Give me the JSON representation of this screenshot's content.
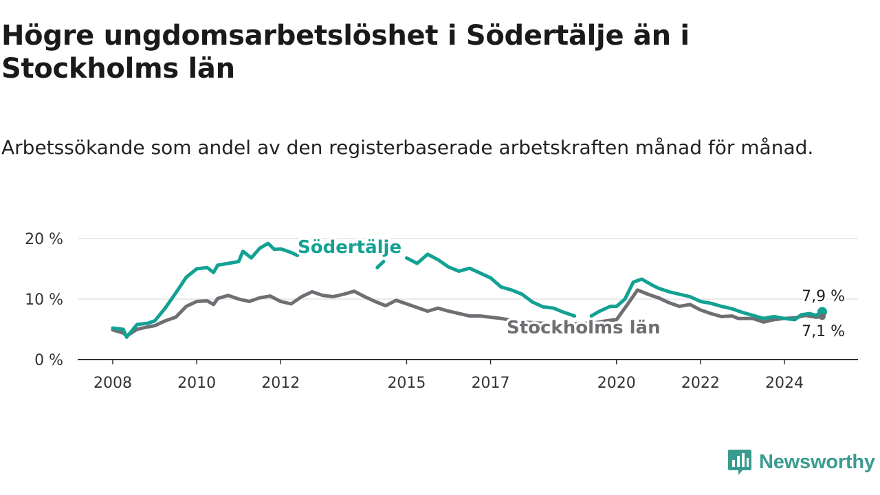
{
  "title": "Högre ungdomsarbetslöshet i Södertälje än i Stockholms län",
  "subtitle": "Arbetssökande som andel av den registerbaserade arbetskraften månad för månad.",
  "brand": {
    "name": "Newsworthy",
    "icon": "newsworthy-logo-icon",
    "color": "#3a9c91"
  },
  "chart_data": {
    "type": "line",
    "x_unit": "year",
    "xticks": [
      2008,
      2010,
      2012,
      2015,
      2017,
      2020,
      2022,
      2024
    ],
    "yticks": [
      0,
      10,
      20
    ],
    "ytick_labels": [
      "0 %",
      "10 %",
      "20 %"
    ],
    "ylim": [
      0,
      20
    ],
    "grid": true,
    "series": [
      {
        "name": "Södertälje",
        "color": "#12a193",
        "end_label": "7,9 %",
        "points": [
          [
            2008.0,
            5.2
          ],
          [
            2008.25,
            5.0
          ],
          [
            2008.33,
            3.7
          ],
          [
            2008.58,
            5.8
          ],
          [
            2008.83,
            6.0
          ],
          [
            2009.0,
            6.4
          ],
          [
            2009.25,
            8.5
          ],
          [
            2009.5,
            11.0
          ],
          [
            2009.75,
            13.6
          ],
          [
            2010.0,
            15.0
          ],
          [
            2010.25,
            15.2
          ],
          [
            2010.4,
            14.4
          ],
          [
            2010.5,
            15.6
          ],
          [
            2010.75,
            15.9
          ],
          [
            2011.0,
            16.2
          ],
          [
            2011.1,
            17.9
          ],
          [
            2011.3,
            16.8
          ],
          [
            2011.5,
            18.4
          ],
          [
            2011.7,
            19.2
          ],
          [
            2011.85,
            18.2
          ],
          [
            2012.0,
            18.3
          ],
          [
            2012.25,
            17.7
          ],
          [
            2012.4,
            17.2
          ]
        ],
        "points_b": [
          [
            2014.3,
            15.2
          ],
          [
            2014.45,
            16.2
          ]
        ],
        "points_c": [
          [
            2015.0,
            16.8
          ],
          [
            2015.25,
            15.9
          ],
          [
            2015.5,
            17.4
          ],
          [
            2015.75,
            16.5
          ],
          [
            2016.0,
            15.3
          ],
          [
            2016.25,
            14.6
          ],
          [
            2016.5,
            15.1
          ],
          [
            2016.75,
            14.3
          ],
          [
            2017.0,
            13.5
          ],
          [
            2017.25,
            12.0
          ],
          [
            2017.5,
            11.5
          ],
          [
            2017.75,
            10.8
          ],
          [
            2018.0,
            9.5
          ],
          [
            2018.25,
            8.7
          ],
          [
            2018.5,
            8.5
          ],
          [
            2018.75,
            7.8
          ],
          [
            2019.0,
            7.2
          ]
        ],
        "points_d": [
          [
            2019.4,
            7.2
          ],
          [
            2019.6,
            8.0
          ],
          [
            2019.85,
            8.8
          ],
          [
            2020.0,
            8.8
          ],
          [
            2020.2,
            10.0
          ],
          [
            2020.4,
            12.8
          ],
          [
            2020.6,
            13.3
          ],
          [
            2020.85,
            12.3
          ],
          [
            2021.0,
            11.8
          ],
          [
            2021.25,
            11.2
          ],
          [
            2021.5,
            10.8
          ],
          [
            2021.75,
            10.4
          ],
          [
            2022.0,
            9.6
          ],
          [
            2022.25,
            9.3
          ],
          [
            2022.5,
            8.8
          ],
          [
            2022.75,
            8.4
          ],
          [
            2023.0,
            7.8
          ],
          [
            2023.25,
            7.3
          ],
          [
            2023.5,
            6.8
          ],
          [
            2023.75,
            7.1
          ],
          [
            2024.0,
            6.8
          ],
          [
            2024.25,
            6.6
          ],
          [
            2024.4,
            7.4
          ],
          [
            2024.6,
            7.6
          ],
          [
            2024.75,
            7.3
          ],
          [
            2024.9,
            7.9
          ]
        ]
      },
      {
        "name": "Stockholms län",
        "color": "#6e6e73",
        "end_label": "7,1 %",
        "points": [
          [
            2008.0,
            4.9
          ],
          [
            2008.25,
            4.4
          ],
          [
            2008.33,
            3.9
          ],
          [
            2008.58,
            5.0
          ],
          [
            2008.83,
            5.4
          ],
          [
            2009.0,
            5.6
          ],
          [
            2009.25,
            6.4
          ],
          [
            2009.5,
            7.0
          ],
          [
            2009.75,
            8.8
          ],
          [
            2010.0,
            9.6
          ],
          [
            2010.25,
            9.7
          ],
          [
            2010.4,
            9.1
          ],
          [
            2010.5,
            10.1
          ],
          [
            2010.75,
            10.6
          ],
          [
            2011.0,
            10.0
          ],
          [
            2011.25,
            9.6
          ],
          [
            2011.5,
            10.2
          ],
          [
            2011.75,
            10.5
          ],
          [
            2012.0,
            9.6
          ],
          [
            2012.25,
            9.2
          ],
          [
            2012.5,
            10.4
          ],
          [
            2012.75,
            11.2
          ],
          [
            2013.0,
            10.6
          ],
          [
            2013.25,
            10.4
          ],
          [
            2013.5,
            10.8
          ],
          [
            2013.75,
            11.3
          ],
          [
            2014.0,
            10.4
          ],
          [
            2014.25,
            9.6
          ],
          [
            2014.5,
            8.9
          ],
          [
            2014.75,
            9.8
          ],
          [
            2015.0,
            9.2
          ],
          [
            2015.25,
            8.6
          ],
          [
            2015.5,
            8.0
          ],
          [
            2015.75,
            8.5
          ],
          [
            2016.0,
            8.0
          ],
          [
            2016.25,
            7.6
          ],
          [
            2016.5,
            7.2
          ],
          [
            2016.75,
            7.2
          ],
          [
            2017.0,
            7.0
          ],
          [
            2017.25,
            6.8
          ],
          [
            2017.5,
            6.5
          ],
          [
            2017.75,
            6.2
          ],
          [
            2018.0,
            6.1
          ],
          [
            2018.25,
            6.0
          ],
          [
            2018.5,
            5.9
          ],
          [
            2018.75,
            5.9
          ],
          [
            2019.0,
            5.9
          ],
          [
            2019.25,
            6.0
          ],
          [
            2019.5,
            6.1
          ],
          [
            2019.75,
            6.4
          ],
          [
            2020.0,
            6.6
          ],
          [
            2020.25,
            9.0
          ],
          [
            2020.5,
            11.5
          ],
          [
            2020.75,
            10.8
          ],
          [
            2021.0,
            10.2
          ],
          [
            2021.25,
            9.4
          ],
          [
            2021.5,
            8.8
          ],
          [
            2021.75,
            9.1
          ],
          [
            2022.0,
            8.2
          ],
          [
            2022.25,
            7.6
          ],
          [
            2022.5,
            7.1
          ],
          [
            2022.75,
            7.2
          ],
          [
            2022.9,
            6.8
          ],
          [
            2023.25,
            6.8
          ],
          [
            2023.5,
            6.2
          ],
          [
            2023.75,
            6.6
          ],
          [
            2024.0,
            6.8
          ],
          [
            2024.25,
            6.9
          ],
          [
            2024.5,
            7.3
          ],
          [
            2024.75,
            7.0
          ],
          [
            2024.9,
            7.1
          ]
        ]
      }
    ]
  }
}
